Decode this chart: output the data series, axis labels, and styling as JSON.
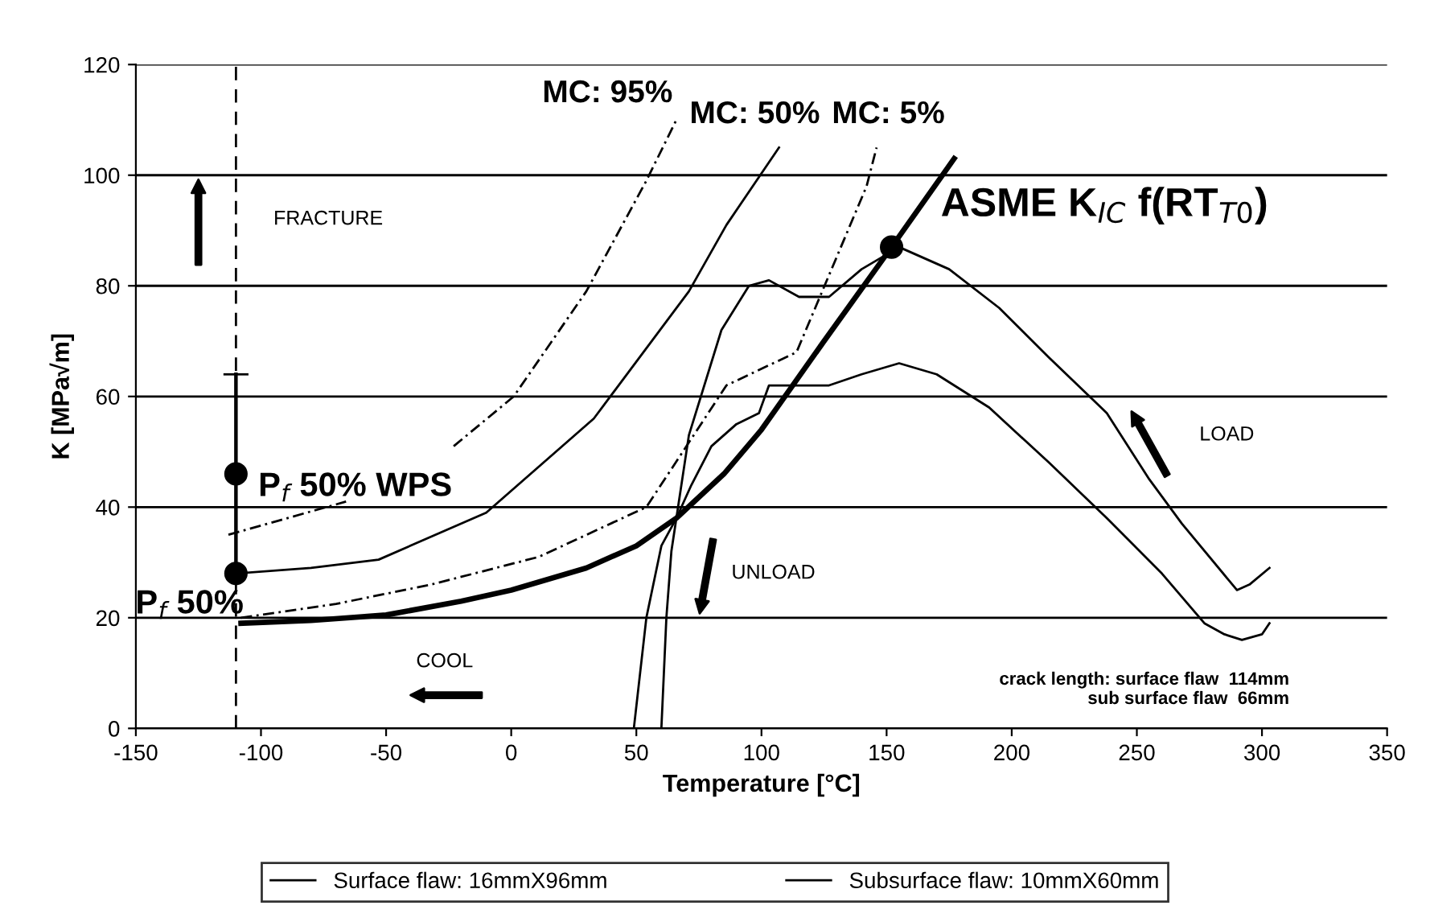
{
  "chart_data": {
    "type": "line",
    "xlabel": "Temperature [°C]",
    "ylabel": "K [MPa√m]",
    "xlim": [
      -150,
      350
    ],
    "xticks": [
      -150,
      -100,
      -50,
      0,
      50,
      100,
      150,
      200,
      250,
      300,
      350
    ],
    "ylim": [
      0,
      120
    ],
    "yticks": [
      0,
      20,
      40,
      60,
      80,
      100,
      120
    ],
    "grid": "y",
    "legend": "bottom",
    "series": [
      {
        "name": "Surface flaw: 16mmX96mm",
        "color": "#000000",
        "x": [
          49,
          54,
          60,
          66,
          71,
          84,
          95,
          103,
          115,
          127,
          140,
          155,
          175,
          195,
          215,
          238,
          255,
          268,
          290,
          295,
          303
        ],
        "values": [
          0,
          20,
          33,
          38,
          53,
          72,
          80,
          81,
          78,
          78,
          83,
          87,
          83,
          76,
          67,
          57,
          45,
          37,
          25,
          26,
          29
        ]
      },
      {
        "name": "Subsurface flaw: 10mmX60mm",
        "color": "#000000",
        "x": [
          60,
          62,
          64,
          66,
          72,
          80,
          90,
          99,
          103,
          127,
          140,
          155,
          170,
          191,
          215,
          238,
          260,
          277,
          285,
          292,
          300,
          303
        ],
        "values": [
          0,
          20,
          32,
          38,
          44,
          51,
          55,
          57,
          62,
          62,
          64,
          66,
          64,
          58,
          48,
          38,
          28,
          19,
          17,
          16,
          17,
          19
        ]
      },
      {
        "color": "#000000",
        "x": [
          -108,
          -80,
          -50,
          -20,
          0,
          30,
          50,
          66,
          85,
          100,
          125,
          152,
          177
        ],
        "values": [
          19,
          19.5,
          20.5,
          23,
          25,
          29,
          33,
          38,
          46,
          54,
          70,
          87,
          103
        ]
      },
      {
        "color": "#000000",
        "line_style": "dashed",
        "x": [
          -108,
          -70,
          -32,
          11,
          54,
          86,
          114,
          142,
          146
        ],
        "values": [
          20,
          22.5,
          26,
          31,
          40,
          62,
          68,
          98,
          105
        ]
      },
      {
        "color": "#000000",
        "x": [
          -110,
          -80,
          -53,
          -10,
          33,
          71,
          86,
          107
        ],
        "values": [
          28,
          29,
          30.5,
          39,
          56,
          79,
          91,
          105
        ]
      },
      {
        "color": "#000000",
        "line_style": "dashed",
        "x": [
          -113,
          -66,
          -40,
          -23,
          1,
          30,
          54,
          66
        ],
        "values": [
          35,
          41,
          null,
          51,
          60,
          79,
          99,
          110
        ]
      },
      {
        "color": "#000000",
        "x": [
          -110,
          -110
        ],
        "values": [
          28,
          64
        ]
      },
      {
        "type": "scatter",
        "color": "#000000",
        "marker": "circle",
        "x": [
          -110,
          -110,
          152
        ],
        "values": [
          28,
          46,
          87
        ]
      }
    ],
    "ref_lines": [
      {
        "axis": "x",
        "value": -110,
        "line_style": "dashed",
        "color": "#000000"
      }
    ],
    "annotations": [
      {
        "text": "MC: 95%",
        "x": 66,
        "y": 110
      },
      {
        "text": "MC: 50%",
        "x": 107,
        "y": 105
      },
      {
        "text": "MC: 5%",
        "x": 146,
        "y": 105
      },
      {
        "text": "ASME K$_{IC}$ f(RT$_{T0}$)",
        "x": 152,
        "y": 87
      },
      {
        "text": "P$_{f}$ 50% WPS",
        "x": -110,
        "y": 46
      },
      {
        "text": "P$_{f}$ 50%",
        "x": -110,
        "y": 28
      },
      "FRACTURE",
      "LOAD",
      "UNLOAD",
      "COOL",
      "crack length: surface flaw  114mm\nsub surface flaw  66mm"
    ]
  }
}
